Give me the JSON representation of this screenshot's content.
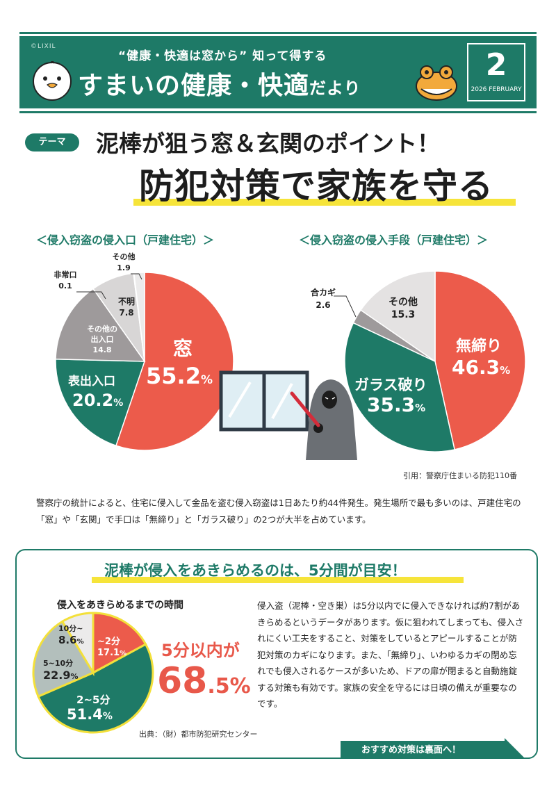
{
  "header": {
    "copyright": "©LIXIL",
    "subtitle": "“健康・快適は窓から” 知って得する",
    "title_main": "すまいの健康・快適",
    "title_small": "だより",
    "issue_number": "2",
    "issue_month": "2026 FEBRUARY"
  },
  "theme": {
    "badge": "テーマ",
    "line1": "泥棒が狙う窓＆玄関のポイント！",
    "line2": "防犯対策で家族を守る"
  },
  "chart_data": [
    {
      "type": "pie",
      "title": "＜侵入窃盗の侵入口（戸建住宅）＞",
      "slices": [
        {
          "name": "窓",
          "value": 55.2,
          "color": "#ec5b4b"
        },
        {
          "name": "表出入口",
          "value": 20.2,
          "color": "#1e7a67"
        },
        {
          "name": "その他の出入口",
          "value": 14.8,
          "color": "#9e9a9b"
        },
        {
          "name": "不明",
          "value": 7.8,
          "color": "#d8d6d6"
        },
        {
          "name": "非常口",
          "value": 0.1,
          "color": "#bdbaba"
        },
        {
          "name": "その他",
          "value": 1.9,
          "color": "#ecebeb"
        }
      ]
    },
    {
      "type": "pie",
      "title": "＜侵入窃盗の侵入手段（戸建住宅）＞",
      "slices": [
        {
          "name": "無締り",
          "value": 46.3,
          "color": "#ec5b4b"
        },
        {
          "name": "ガラス破り",
          "value": 35.3,
          "color": "#1e7a67"
        },
        {
          "name": "合カギ",
          "value": 2.6,
          "color": "#9e9a9b"
        },
        {
          "name": "その他",
          "value": 15.3,
          "color": "#e4e2e2"
        }
      ]
    },
    {
      "type": "pie",
      "title": "侵入をあきらめるまでの時間",
      "slices": [
        {
          "name": "~2分",
          "value": 17.1,
          "color": "#ec5b4b"
        },
        {
          "name": "2~5分",
          "value": 51.4,
          "color": "#1e7a67"
        },
        {
          "name": "5~10分",
          "value": 22.9,
          "color": "#b3bfbc"
        },
        {
          "name": "10分~",
          "value": 8.6,
          "color": "#ecebeb"
        }
      ]
    }
  ],
  "labels": {
    "c1": {
      "window_name": "窓",
      "window_val": "55.2",
      "pct": "%",
      "front_name": "表出入口",
      "front_val": "20.2",
      "other_entry_name1": "その他の",
      "other_entry_name2": "出入口",
      "other_entry_val": "14.8",
      "unknown_name": "不明",
      "unknown_val": "7.8",
      "emergency_name": "非常口",
      "emergency_val": "0.1",
      "other_name": "その他",
      "other_val": "1.9"
    },
    "c2": {
      "unlocked_name": "無締り",
      "unlocked_val": "46.3",
      "pct": "%",
      "glass_name": "ガラス破り",
      "glass_val": "35.3",
      "key_name": "合カギ",
      "key_val": "2.6",
      "other_name": "その他",
      "other_val": "15.3"
    },
    "c3": {
      "s1_name": "~2分",
      "s1_val": "17.1",
      "pct": "%",
      "s2_name": "2~5分",
      "s2_val": "51.4",
      "s3_name": "5~10分",
      "s3_val": "22.9",
      "s4_name": "10分~",
      "s4_val": "8.6"
    }
  },
  "citation1": "引用：警察庁住まいる防犯110番",
  "paragraph1": "警察庁の統計によると、住宅に侵入して金品を盗む侵入窃盗は1日あたり約44件発生。発生場所で最も多いのは、戸建住宅の「窓」や「玄関」で手口は「無締り」と「ガラス破り」の2つが大半を占めています。",
  "section2": {
    "title": "泥棒が侵入をあきらめるのは、5分間が目安！",
    "within": "5分以内が",
    "big_value": "68",
    "big_decimal": ".5",
    "big_pct": "%",
    "citation": "出典：（財）都市防犯研究センター",
    "paragraph": "侵入盗（泥棒・空き巣）は5分以内でに侵入できなければ約7割があきらめるというデータがあります。仮に狙われてしまっても、侵入されにくい工夫をすること、対策をしているとアピールすることが防犯対策のカギになります。また、「無締り」、いわゆるカギの閉め忘れでも侵入されるケースが多いため、ドアの扉が閉まると自動施錠する対策も有効です。家族の安全を守るには日頃の備えが重要なのです。",
    "ribbon": "おすすめ対策は裏面へ！"
  }
}
